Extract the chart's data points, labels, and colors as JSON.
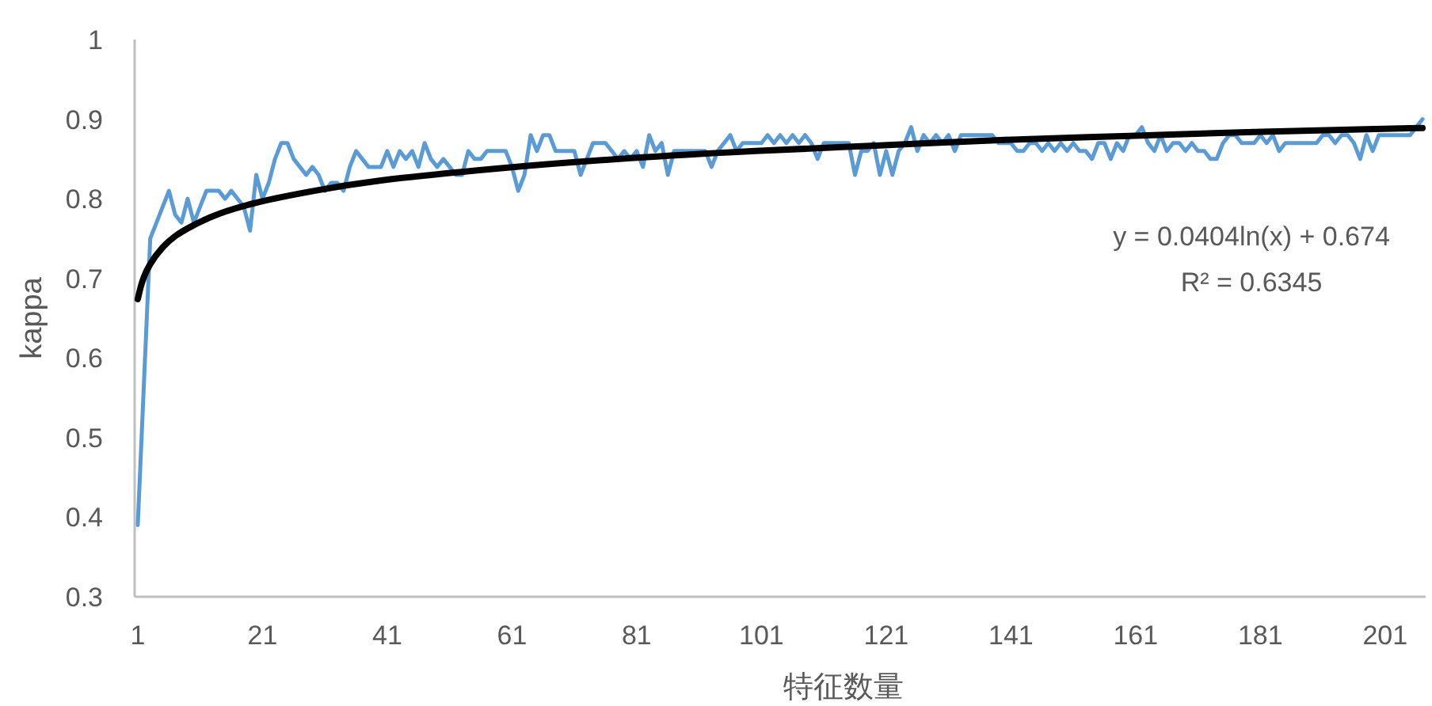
{
  "chart_data": {
    "type": "line",
    "xlabel": "特征数量",
    "ylabel": "kappa",
    "xlim": [
      0.5,
      207.5
    ],
    "xticks": [
      1,
      21,
      41,
      61,
      81,
      101,
      121,
      141,
      161,
      181,
      201
    ],
    "ylim": [
      0.3,
      1
    ],
    "yticks": [
      0.3,
      0.4,
      0.5,
      0.6,
      0.7,
      0.8,
      0.9,
      1
    ],
    "x": [
      1,
      2,
      3,
      4,
      5,
      6,
      7,
      8,
      9,
      10,
      11,
      12,
      13,
      14,
      15,
      16,
      17,
      18,
      19,
      20,
      21,
      22,
      23,
      24,
      25,
      26,
      27,
      28,
      29,
      30,
      31,
      32,
      33,
      34,
      35,
      36,
      37,
      38,
      39,
      40,
      41,
      42,
      43,
      44,
      45,
      46,
      47,
      48,
      49,
      50,
      51,
      52,
      53,
      54,
      55,
      56,
      57,
      58,
      59,
      60,
      61,
      62,
      63,
      64,
      65,
      66,
      67,
      68,
      69,
      70,
      71,
      72,
      73,
      74,
      75,
      76,
      77,
      78,
      79,
      80,
      81,
      82,
      83,
      84,
      85,
      86,
      87,
      88,
      89,
      90,
      91,
      92,
      93,
      94,
      95,
      96,
      97,
      98,
      99,
      100,
      101,
      102,
      103,
      104,
      105,
      106,
      107,
      108,
      109,
      110,
      111,
      112,
      113,
      114,
      115,
      116,
      117,
      118,
      119,
      120,
      121,
      122,
      123,
      124,
      125,
      126,
      127,
      128,
      129,
      130,
      131,
      132,
      133,
      134,
      135,
      136,
      137,
      138,
      139,
      140,
      141,
      142,
      143,
      144,
      145,
      146,
      147,
      148,
      149,
      150,
      151,
      152,
      153,
      154,
      155,
      156,
      157,
      158,
      159,
      160,
      161,
      162,
      163,
      164,
      165,
      166,
      167,
      168,
      169,
      170,
      171,
      172,
      173,
      174,
      175,
      176,
      177,
      178,
      179,
      180,
      181,
      182,
      183,
      184,
      185,
      186,
      187,
      188,
      189,
      190,
      191,
      192,
      193,
      194,
      195,
      196,
      197,
      198,
      199,
      200,
      201,
      202,
      203,
      204,
      205,
      206,
      207
    ],
    "series": [
      {
        "color": "#5b9bd5",
        "values": [
          0.39,
          0.57,
          0.75,
          0.77,
          0.79,
          0.81,
          0.78,
          0.77,
          0.8,
          0.77,
          0.79,
          0.81,
          0.81,
          0.81,
          0.8,
          0.81,
          0.8,
          0.79,
          0.76,
          0.83,
          0.8,
          0.82,
          0.85,
          0.87,
          0.87,
          0.85,
          0.84,
          0.83,
          0.84,
          0.83,
          0.81,
          0.82,
          0.82,
          0.81,
          0.84,
          0.86,
          0.85,
          0.84,
          0.84,
          0.84,
          0.86,
          0.84,
          0.86,
          0.85,
          0.86,
          0.84,
          0.87,
          0.85,
          0.84,
          0.85,
          0.84,
          0.83,
          0.83,
          0.86,
          0.85,
          0.85,
          0.86,
          0.86,
          0.86,
          0.86,
          0.84,
          0.81,
          0.83,
          0.88,
          0.86,
          0.88,
          0.88,
          0.86,
          0.86,
          0.86,
          0.86,
          0.83,
          0.85,
          0.87,
          0.87,
          0.87,
          0.86,
          0.85,
          0.86,
          0.85,
          0.86,
          0.84,
          0.88,
          0.86,
          0.87,
          0.83,
          0.86,
          0.86,
          0.86,
          0.86,
          0.86,
          0.86,
          0.84,
          0.86,
          0.87,
          0.88,
          0.86,
          0.87,
          0.87,
          0.87,
          0.87,
          0.88,
          0.87,
          0.88,
          0.87,
          0.88,
          0.87,
          0.88,
          0.87,
          0.85,
          0.87,
          0.87,
          0.87,
          0.87,
          0.87,
          0.83,
          0.86,
          0.86,
          0.87,
          0.83,
          0.86,
          0.83,
          0.86,
          0.87,
          0.89,
          0.86,
          0.88,
          0.87,
          0.88,
          0.87,
          0.88,
          0.86,
          0.88,
          0.88,
          0.88,
          0.88,
          0.88,
          0.88,
          0.87,
          0.87,
          0.87,
          0.86,
          0.86,
          0.87,
          0.87,
          0.86,
          0.87,
          0.86,
          0.87,
          0.86,
          0.87,
          0.86,
          0.86,
          0.85,
          0.87,
          0.87,
          0.85,
          0.87,
          0.86,
          0.88,
          0.88,
          0.89,
          0.87,
          0.86,
          0.88,
          0.86,
          0.87,
          0.87,
          0.86,
          0.87,
          0.86,
          0.86,
          0.85,
          0.85,
          0.87,
          0.88,
          0.88,
          0.87,
          0.87,
          0.87,
          0.88,
          0.87,
          0.88,
          0.86,
          0.87,
          0.87,
          0.87,
          0.87,
          0.87,
          0.87,
          0.88,
          0.88,
          0.87,
          0.88,
          0.88,
          0.87,
          0.85,
          0.88,
          0.86,
          0.88,
          0.88,
          0.88,
          0.88,
          0.88,
          0.88,
          0.89,
          0.9
        ]
      },
      {
        "type": "line",
        "color": "#000000",
        "x": [
          1,
          1.5,
          2,
          3,
          5,
          7,
          10,
          14,
          20,
          30,
          40,
          60,
          80,
          100,
          120,
          140,
          160,
          180,
          207
        ],
        "values": [
          0.674,
          0.69,
          0.702,
          0.718,
          0.739,
          0.753,
          0.767,
          0.781,
          0.795,
          0.811,
          0.823,
          0.839,
          0.851,
          0.86,
          0.867,
          0.874,
          0.879,
          0.884,
          0.889
        ]
      }
    ],
    "annotations": [
      "y = 0.0404ln(x) + 0.674",
      "R² = 0.6345"
    ]
  }
}
